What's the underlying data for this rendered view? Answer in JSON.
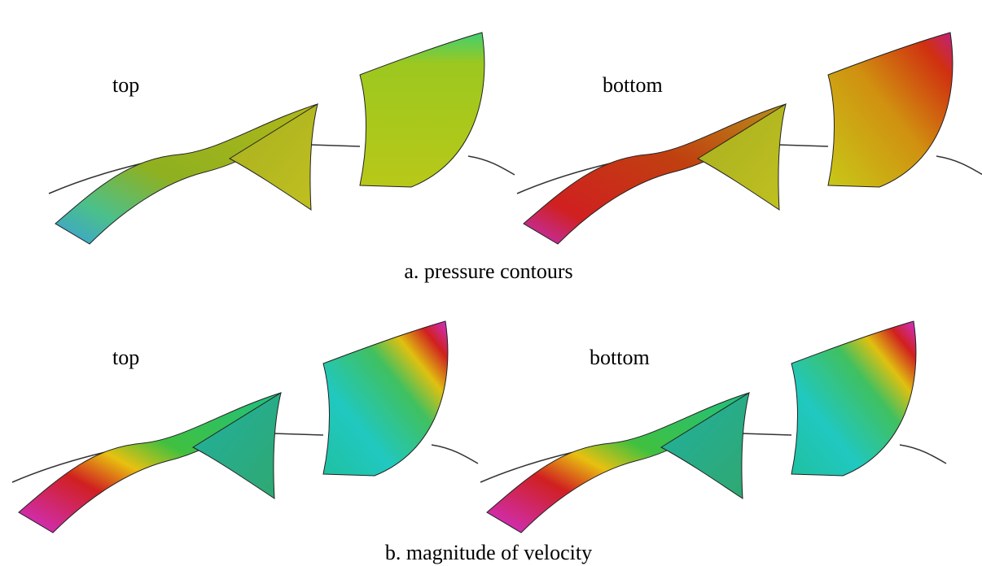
{
  "panels": [
    {
      "caption": "a. pressure contours",
      "labels": [
        "top",
        "bottom"
      ]
    },
    {
      "caption": "b. magnitude of velocity",
      "labels": [
        "top",
        "bottom"
      ]
    }
  ]
}
